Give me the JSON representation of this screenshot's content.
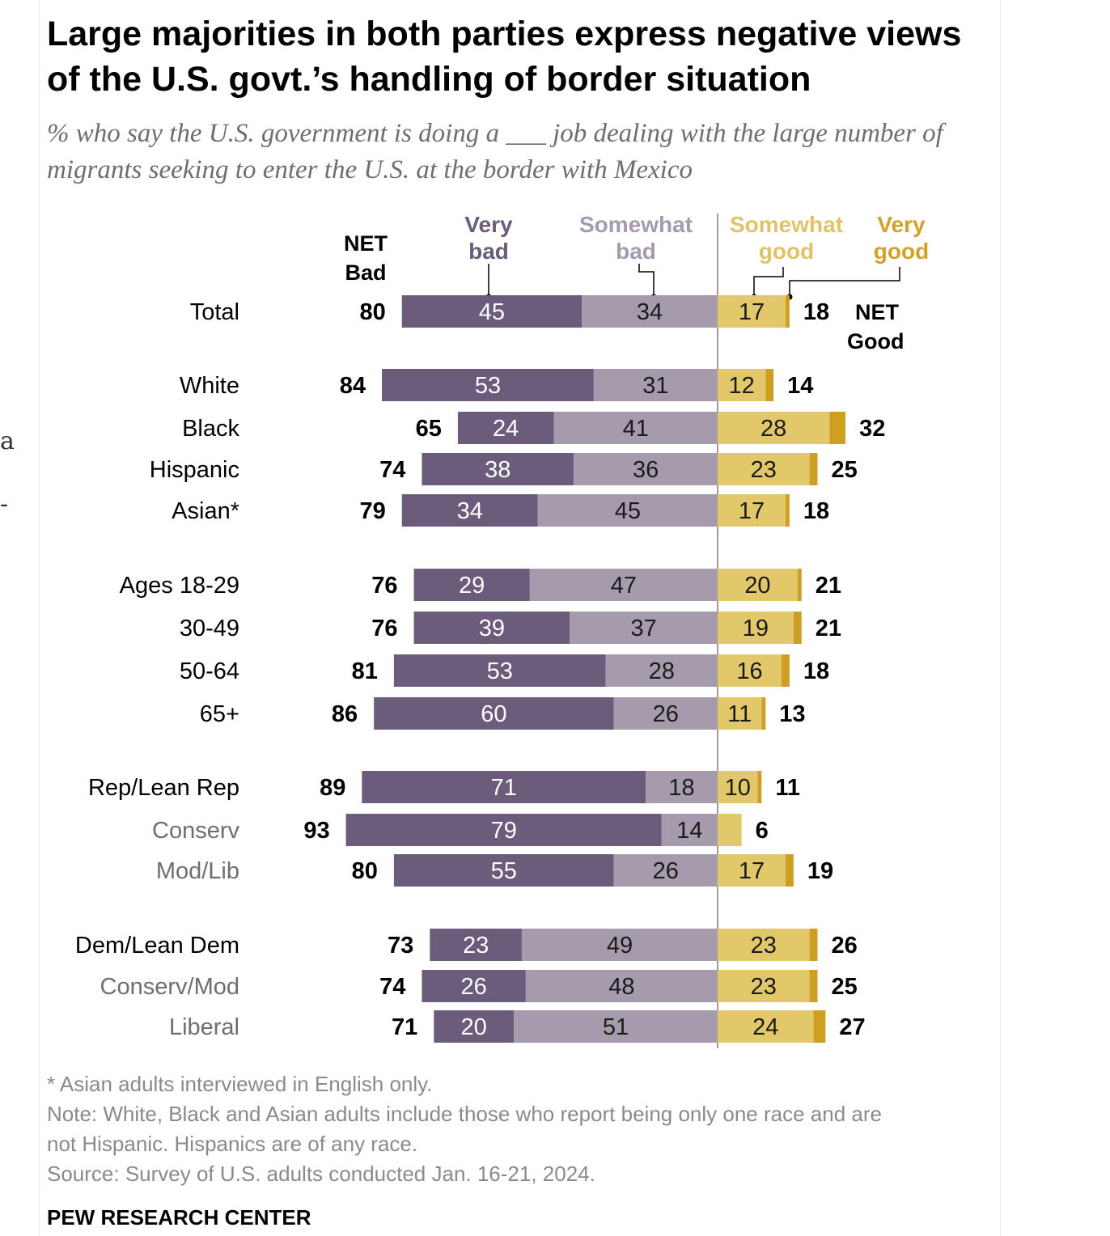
{
  "title": "Large majorities in both parties express negative views of the U.S. govt.’s handling of border situation",
  "subtitle": "% who say the U.S. government is doing a ___ job dealing with the large number of migrants seeking to enter the U.S. at the border with Mexico",
  "cropped_glyphs": [
    "a",
    "-"
  ],
  "colors": {
    "very_bad": "#6b5c7b",
    "somewhat_bad": "#a69bad",
    "somewhat_good": "#e2c76b",
    "very_good": "#cf9f21",
    "very_bad_label": "#6b5c7b",
    "somewhat_bad_label": "#a69bad",
    "somewhat_good_label": "#e0c368",
    "very_good_label": "#d3a12a"
  },
  "chart_data": {
    "type": "bar",
    "orientation": "horizontal-diverging",
    "header": {
      "net_bad": "NET Bad",
      "very_bad": "Very bad",
      "somewhat_bad": "Somewhat bad",
      "somewhat_good": "Somewhat good",
      "very_good": "Very good",
      "net_good": "NET Good"
    },
    "series": [
      {
        "key": "very_bad",
        "name": "Very bad"
      },
      {
        "key": "somewhat_bad",
        "name": "Somewhat bad"
      },
      {
        "key": "somewhat_good",
        "name": "Somewhat good"
      },
      {
        "key": "very_good",
        "name": "Very good"
      }
    ],
    "rows": [
      {
        "label": "Total",
        "net_bad": "80",
        "very_bad": 45,
        "somewhat_bad": 34,
        "somewhat_good": 17,
        "very_good": 1,
        "net_good": "18",
        "very_bad_label": "45",
        "somewhat_bad_label": "34",
        "somewhat_good_label": "17"
      },
      {
        "label": "White",
        "net_bad": "84",
        "very_bad": 53,
        "somewhat_bad": 31,
        "somewhat_good": 12,
        "very_good": 2,
        "net_good": "14",
        "very_bad_label": "53",
        "somewhat_bad_label": "31",
        "somewhat_good_label": "12"
      },
      {
        "label": "Black",
        "net_bad": "65",
        "very_bad": 24,
        "somewhat_bad": 41,
        "somewhat_good": 28,
        "very_good": 4,
        "net_good": "32",
        "very_bad_label": "24",
        "somewhat_bad_label": "41",
        "somewhat_good_label": "28"
      },
      {
        "label": "Hispanic",
        "net_bad": "74",
        "very_bad": 38,
        "somewhat_bad": 36,
        "somewhat_good": 23,
        "very_good": 2,
        "net_good": "25",
        "very_bad_label": "38",
        "somewhat_bad_label": "36",
        "somewhat_good_label": "23"
      },
      {
        "label": "Asian*",
        "net_bad": "79",
        "very_bad": 34,
        "somewhat_bad": 45,
        "somewhat_good": 17,
        "very_good": 1,
        "net_good": "18",
        "very_bad_label": "34",
        "somewhat_bad_label": "45",
        "somewhat_good_label": "17"
      },
      {
        "label": "Ages 18-29",
        "net_bad": "76",
        "very_bad": 29,
        "somewhat_bad": 47,
        "somewhat_good": 20,
        "very_good": 1,
        "net_good": "21",
        "very_bad_label": "29",
        "somewhat_bad_label": "47",
        "somewhat_good_label": "20"
      },
      {
        "label": "30-49",
        "net_bad": "76",
        "very_bad": 39,
        "somewhat_bad": 37,
        "somewhat_good": 19,
        "very_good": 2,
        "net_good": "21",
        "very_bad_label": "39",
        "somewhat_bad_label": "37",
        "somewhat_good_label": "19"
      },
      {
        "label": "50-64",
        "net_bad": "81",
        "very_bad": 53,
        "somewhat_bad": 28,
        "somewhat_good": 16,
        "very_good": 2,
        "net_good": "18",
        "very_bad_label": "53",
        "somewhat_bad_label": "28",
        "somewhat_good_label": "16"
      },
      {
        "label": "65+",
        "net_bad": "86",
        "very_bad": 60,
        "somewhat_bad": 26,
        "somewhat_good": 11,
        "very_good": 1,
        "net_good": "13",
        "very_bad_label": "60",
        "somewhat_bad_label": "26",
        "somewhat_good_label": "11"
      },
      {
        "label": "Rep/Lean Rep",
        "net_bad": "89",
        "very_bad": 71,
        "somewhat_bad": 18,
        "somewhat_good": 10,
        "very_good": 1,
        "net_good": "11",
        "very_bad_label": "71",
        "somewhat_bad_label": "18",
        "somewhat_good_label": "10"
      },
      {
        "label": "Conserv",
        "net_bad": "93",
        "very_bad": 79,
        "somewhat_bad": 14,
        "somewhat_good": 6,
        "very_good": 0,
        "net_good": "6",
        "very_bad_label": "79",
        "somewhat_bad_label": "14",
        "somewhat_good_label": ""
      },
      {
        "label": "Mod/Lib",
        "net_bad": "80",
        "very_bad": 55,
        "somewhat_bad": 26,
        "somewhat_good": 17,
        "very_good": 2,
        "net_good": "19",
        "very_bad_label": "55",
        "somewhat_bad_label": "26",
        "somewhat_good_label": "17"
      },
      {
        "label": "Dem/Lean Dem",
        "net_bad": "73",
        "very_bad": 23,
        "somewhat_bad": 49,
        "somewhat_good": 23,
        "very_good": 2,
        "net_good": "26",
        "very_bad_label": "23",
        "somewhat_bad_label": "49",
        "somewhat_good_label": "23"
      },
      {
        "label": "Conserv/Mod",
        "net_bad": "74",
        "very_bad": 26,
        "somewhat_bad": 48,
        "somewhat_good": 23,
        "very_good": 2,
        "net_good": "25",
        "very_bad_label": "26",
        "somewhat_bad_label": "48",
        "somewhat_good_label": "23"
      },
      {
        "label": "Liberal",
        "net_bad": "71",
        "very_bad": 20,
        "somewhat_bad": 51,
        "somewhat_good": 24,
        "very_good": 3,
        "net_good": "27",
        "very_bad_label": "20",
        "somewhat_bad_label": "51",
        "somewhat_good_label": "24"
      }
    ],
    "row_label_colors": [
      "#000000",
      "#000000",
      "#000000",
      "#000000",
      "#000000",
      "#000000",
      "#000000",
      "#000000",
      "#000000",
      "#000000",
      "#6e6e6e",
      "#6e6e6e",
      "#000000",
      "#6e6e6e",
      "#6e6e6e"
    ],
    "xlim": [
      -93,
      30
    ],
    "grid": false,
    "legend": "top"
  },
  "footer": {
    "note1": "* Asian adults interviewed in English only.",
    "note2": "Note: White, Black and Asian adults include those who report being only one race and are",
    "note3": "not Hispanic. Hispanics are of any race.",
    "source": "Source: Survey of U.S. adults conducted Jan. 16-21, 2024."
  },
  "brand": "PEW RESEARCH CENTER"
}
